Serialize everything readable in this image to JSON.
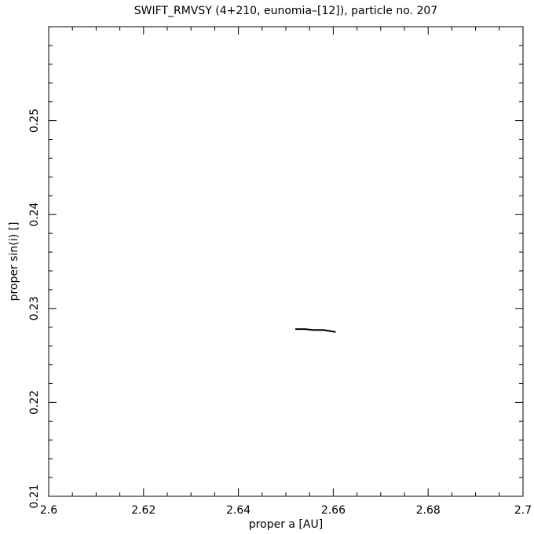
{
  "chart_data": {
    "type": "line",
    "title": "SWIFT_RMVSY (4+210, eunomia–[12]), particle no. 207",
    "x_label": "proper a [AU]",
    "y_label": "proper sin(i) []",
    "series": [
      {
        "name": null,
        "color": "#000000",
        "x": [
          2.652,
          2.654,
          2.656,
          2.658,
          2.6605
        ],
        "values": [
          0.2278,
          0.2278,
          0.2277,
          0.2277,
          0.2275
        ]
      }
    ],
    "xlim": [
      2.6,
      2.7
    ],
    "ylim": [
      0.21,
      0.26
    ],
    "xticks": [
      2.6,
      2.62,
      2.64,
      2.66,
      2.68,
      2.7
    ],
    "yticks": [
      0.21,
      0.22,
      0.23,
      0.24,
      0.25
    ],
    "xminorticks": [
      2.605,
      2.61,
      2.615,
      2.625,
      2.63,
      2.635,
      2.645,
      2.65,
      2.655,
      2.665,
      2.67,
      2.675,
      2.685,
      2.69,
      2.695
    ],
    "yminorticks": [
      0.212,
      0.214,
      0.216,
      0.218,
      0.222,
      0.224,
      0.226,
      0.228,
      0.232,
      0.234,
      0.236,
      0.238,
      0.242,
      0.244,
      0.246,
      0.248,
      0.252,
      0.254,
      0.256,
      0.258
    ]
  }
}
